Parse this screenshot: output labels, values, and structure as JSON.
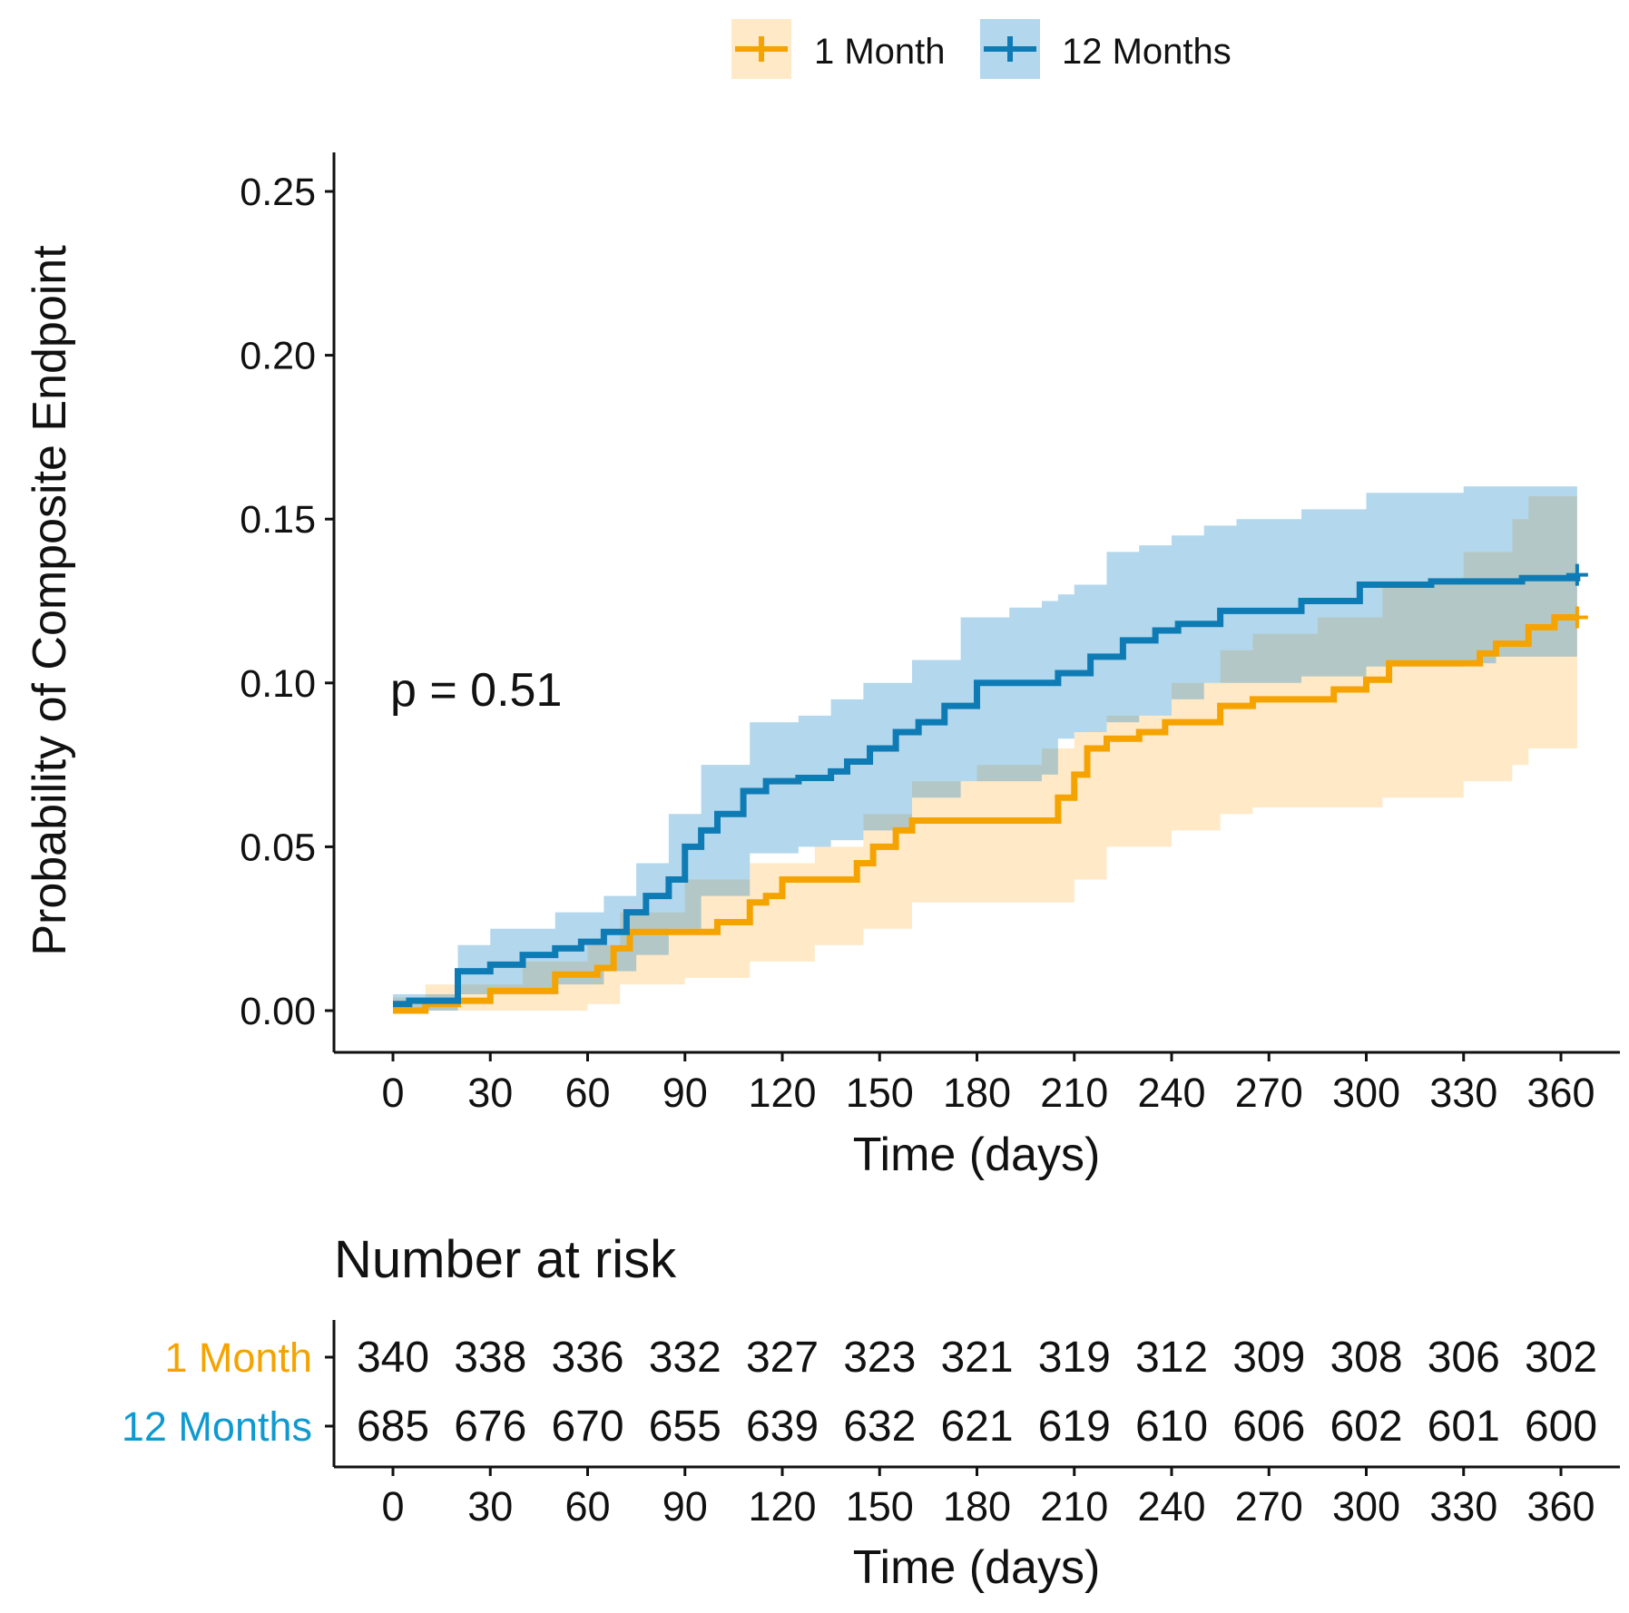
{
  "chart_data": {
    "type": "line",
    "subtype": "cumulative-incidence-step",
    "xlabel": "Time (days)",
    "ylabel": "Probability of Composite Endpoint",
    "xlim": [
      0,
      365
    ],
    "ylim": [
      0,
      0.25
    ],
    "xticks": [
      0,
      30,
      60,
      90,
      120,
      150,
      180,
      210,
      240,
      270,
      300,
      330,
      360
    ],
    "yticks": [
      "0.00",
      "0.05",
      "0.10",
      "0.15",
      "0.20",
      "0.25"
    ],
    "annotation": "p = 0.51",
    "legend_placement": "top",
    "grid": false,
    "series": [
      {
        "name": "1 Month",
        "color": "#F5A300",
        "x": [
          0,
          10,
          20,
          30,
          50,
          63,
          68,
          73,
          100,
          110,
          115,
          120,
          143,
          148,
          155,
          160,
          205,
          210,
          214,
          220,
          230,
          238,
          255,
          265,
          290,
          300,
          307,
          335,
          340,
          350,
          358,
          365
        ],
        "y": [
          0,
          0.002,
          0.003,
          0.006,
          0.011,
          0.013,
          0.019,
          0.024,
          0.027,
          0.033,
          0.035,
          0.04,
          0.045,
          0.05,
          0.055,
          0.058,
          0.065,
          0.072,
          0.08,
          0.083,
          0.085,
          0.088,
          0.093,
          0.095,
          0.098,
          0.101,
          0.106,
          0.109,
          0.112,
          0.117,
          0.12,
          0.12
        ],
        "ci_x": [
          0,
          10,
          40,
          60,
          70,
          90,
          110,
          130,
          145,
          160,
          180,
          200,
          210,
          220,
          240,
          255,
          265,
          285,
          305,
          330,
          345,
          350,
          365
        ],
        "ci_upper": [
          0.004,
          0.008,
          0.015,
          0.02,
          0.03,
          0.04,
          0.045,
          0.05,
          0.06,
          0.07,
          0.075,
          0.08,
          0.085,
          0.09,
          0.1,
          0.11,
          0.115,
          0.12,
          0.13,
          0.14,
          0.15,
          0.157,
          0.157
        ],
        "ci_lower": [
          0,
          0,
          0,
          0.002,
          0.008,
          0.01,
          0.015,
          0.02,
          0.025,
          0.033,
          0.033,
          0.033,
          0.04,
          0.05,
          0.055,
          0.06,
          0.062,
          0.062,
          0.065,
          0.07,
          0.075,
          0.08,
          0.08
        ]
      },
      {
        "name": "12 Months",
        "color": "#0E7BB5",
        "x": [
          0,
          5,
          20,
          30,
          40,
          50,
          58,
          65,
          72,
          78,
          85,
          90,
          95,
          100,
          108,
          115,
          125,
          135,
          140,
          147,
          155,
          162,
          170,
          180,
          205,
          215,
          225,
          235,
          242,
          255,
          280,
          298,
          320,
          348,
          365
        ],
        "y": [
          0.002,
          0.003,
          0.012,
          0.014,
          0.017,
          0.019,
          0.021,
          0.024,
          0.03,
          0.035,
          0.04,
          0.05,
          0.055,
          0.06,
          0.067,
          0.07,
          0.071,
          0.073,
          0.076,
          0.08,
          0.085,
          0.088,
          0.093,
          0.1,
          0.103,
          0.108,
          0.113,
          0.116,
          0.118,
          0.122,
          0.125,
          0.13,
          0.131,
          0.132,
          0.133
        ],
        "ci_x": [
          0,
          20,
          30,
          50,
          65,
          75,
          85,
          95,
          110,
          125,
          135,
          145,
          160,
          175,
          190,
          200,
          205,
          210,
          220,
          230,
          240,
          250,
          260,
          280,
          300,
          330,
          340,
          365
        ],
        "ci_upper": [
          0.005,
          0.02,
          0.025,
          0.03,
          0.035,
          0.045,
          0.06,
          0.075,
          0.088,
          0.09,
          0.095,
          0.1,
          0.107,
          0.12,
          0.123,
          0.125,
          0.127,
          0.13,
          0.14,
          0.142,
          0.145,
          0.148,
          0.15,
          0.153,
          0.158,
          0.16,
          0.16,
          0.16
        ],
        "ci_lower": [
          0,
          0.005,
          0.006,
          0.008,
          0.012,
          0.017,
          0.025,
          0.035,
          0.048,
          0.05,
          0.052,
          0.055,
          0.065,
          0.07,
          0.07,
          0.072,
          0.083,
          0.085,
          0.088,
          0.09,
          0.095,
          0.1,
          0.1,
          0.102,
          0.105,
          0.106,
          0.108,
          0.11
        ]
      }
    ],
    "risk_table": {
      "title": "Number at risk",
      "xlabel": "Time (days)",
      "times": [
        0,
        30,
        60,
        90,
        120,
        150,
        180,
        210,
        240,
        270,
        300,
        330,
        360
      ],
      "rows": [
        {
          "label": "1 Month",
          "color": "#F5A300",
          "values": [
            "340",
            "338",
            "336",
            "332",
            "327",
            "323",
            "321",
            "319",
            "312",
            "309",
            "308",
            "306",
            "302"
          ]
        },
        {
          "label": "12 Months",
          "color": "#0E9AD0",
          "values": [
            "685",
            "676",
            "670",
            "655",
            "639",
            "632",
            "621",
            "619",
            "610",
            "606",
            "602",
            "601",
            "600"
          ]
        }
      ]
    }
  }
}
